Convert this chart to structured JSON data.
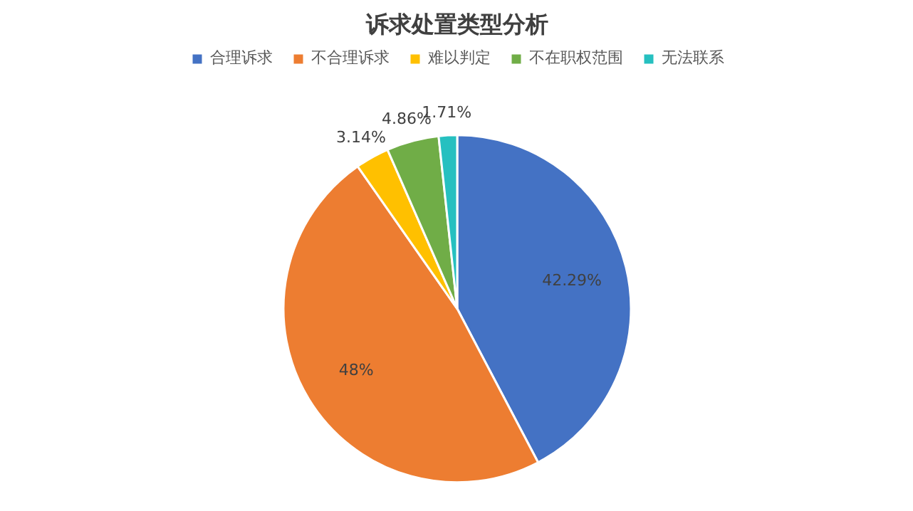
{
  "chart_data": {
    "type": "pie",
    "title": "诉求处置类型分析",
    "categories": [
      "合理诉求",
      "不合理诉求",
      "难以判定",
      "不在职权范围",
      "无法联系"
    ],
    "values": [
      42.29,
      48,
      3.14,
      4.86,
      1.71
    ],
    "colors": [
      "#4472c4",
      "#ed7d31",
      "#ffc000",
      "#70ad47",
      "#26c0c0"
    ],
    "value_labels": [
      "42.29%",
      "48%",
      "3.14%",
      "4.86%",
      "1.71%"
    ],
    "legend": "top"
  }
}
